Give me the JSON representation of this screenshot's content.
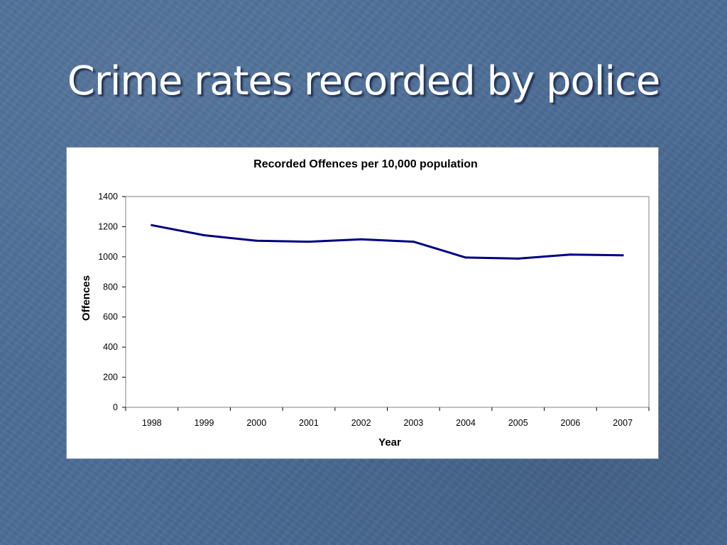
{
  "slide": {
    "title": "Crime rates recorded by police"
  },
  "chart_data": {
    "type": "line",
    "title": "Recorded Offences per 10,000 population",
    "xlabel": "Year",
    "ylabel": "Offences",
    "categories": [
      "1998",
      "1999",
      "2000",
      "2001",
      "2002",
      "2003",
      "2004",
      "2005",
      "2006",
      "2007"
    ],
    "series": [
      {
        "values": [
          1210,
          1143,
          1107,
          1100,
          1116,
          1100,
          995,
          988,
          1015,
          1010
        ],
        "color": "#000080"
      }
    ],
    "ylim": [
      0,
      1400
    ],
    "yticks": [
      0,
      200,
      400,
      600,
      800,
      1000,
      1200,
      1400
    ],
    "grid": false,
    "legend": false
  }
}
